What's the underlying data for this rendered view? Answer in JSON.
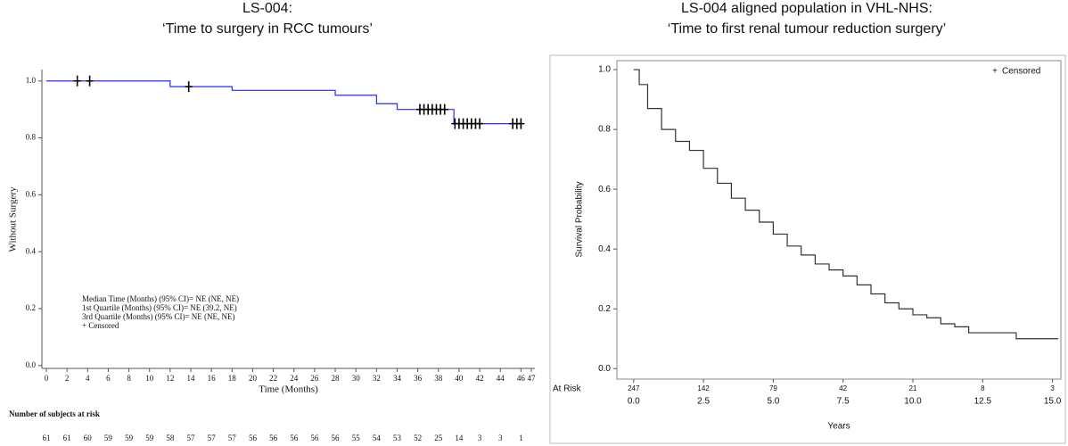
{
  "chart_data": [
    {
      "type": "line",
      "title": "LS-004:",
      "subtitle": "‘Time to surgery in RCC tumours’",
      "x_label": "Time (Months)",
      "y_label": "Without Surgery",
      "xlim": [
        -0.43,
        47.35
      ],
      "ylim": [
        -0.01,
        1.04
      ],
      "xticks": [
        0,
        2,
        4,
        6,
        8,
        10,
        12,
        14,
        16,
        18,
        20,
        22,
        24,
        26,
        28,
        30,
        32,
        34,
        36,
        38,
        40,
        42,
        44,
        46,
        47
      ],
      "yticks": [
        {
          "value": 0,
          "label": "0.0"
        },
        {
          "value": 0.2,
          "label": "0.2"
        },
        {
          "value": 0.4,
          "label": "0.4"
        },
        {
          "value": 0.6,
          "label": "0.6"
        },
        {
          "value": 0.8,
          "label": "0.8"
        },
        {
          "value": 1,
          "label": "1.0"
        }
      ],
      "series": [
        {
          "color": "#2a2aff",
          "x": [
            0,
            12,
            18,
            28,
            32,
            34,
            36,
            39.5,
            46.2
          ],
          "values": [
            1,
            0.98,
            0.967,
            0.95,
            0.92,
            0.9,
            0.9,
            0.85,
            0.85
          ]
        }
      ],
      "censored": {
        "color": "#000000",
        "x": [
          3,
          4.2,
          13.8,
          36.2,
          36.6,
          37,
          37.4,
          37.8,
          38.2,
          38.6,
          39.6,
          40,
          40.4,
          40.8,
          41.2,
          41.6,
          42,
          45.2,
          45.6,
          46
        ],
        "values": [
          1,
          1,
          0.98,
          0.9,
          0.9,
          0.9,
          0.9,
          0.9,
          0.9,
          0.9,
          0.85,
          0.85,
          0.85,
          0.85,
          0.85,
          0.85,
          0.85,
          0.85,
          0.85,
          0.85
        ]
      },
      "annotations": [
        "Median Time (Months) (95% CI)= NE (NE, NE)",
        "1st Quartile (Months) (95% CI)= NE (39.2, NE)",
        "3rd Quartile (Months) (95% CI)= NE (NE, NE)",
        "+ Censored"
      ],
      "at_risk_label": "Number of subjects at risk",
      "at_risk": [
        61,
        61,
        60,
        59,
        59,
        59,
        58,
        57,
        57,
        57,
        56,
        56,
        56,
        56,
        56,
        55,
        54,
        53,
        52,
        25,
        14,
        3,
        3,
        1
      ]
    },
    {
      "type": "line",
      "title": "LS-004 aligned population in VHL-NHS:",
      "subtitle": "‘Time to first renal tumour reduction surgery’",
      "x_label": "Years",
      "y_label": "Survival Probability",
      "xlim": [
        -0.6,
        15.3
      ],
      "ylim": [
        -0.035,
        1.03
      ],
      "xticks": [
        {
          "value": 0,
          "label": "0.0"
        },
        {
          "value": 2.5,
          "label": "2.5"
        },
        {
          "value": 5,
          "label": "5.0"
        },
        {
          "value": 7.5,
          "label": "7.5"
        },
        {
          "value": 10,
          "label": "10.0"
        },
        {
          "value": 12.5,
          "label": "12.5"
        },
        {
          "value": 15,
          "label": "15.0"
        }
      ],
      "yticks": [
        {
          "value": 0,
          "label": "0.0"
        },
        {
          "value": 0.2,
          "label": "0.2"
        },
        {
          "value": 0.4,
          "label": "0.4"
        },
        {
          "value": 0.6,
          "label": "0.6"
        },
        {
          "value": 0.8,
          "label": "0.8"
        },
        {
          "value": 1,
          "label": "1.0"
        }
      ],
      "series": [
        {
          "color": "#333333",
          "x": [
            0,
            0.2,
            0.5,
            1,
            1.5,
            2,
            2.5,
            3,
            3.5,
            4,
            4.5,
            5,
            5.5,
            6,
            6.5,
            7,
            7.5,
            8,
            8.5,
            9,
            9.5,
            10,
            10.5,
            11,
            11.5,
            12,
            13.7,
            15.2
          ],
          "values": [
            1,
            0.95,
            0.87,
            0.8,
            0.76,
            0.73,
            0.67,
            0.62,
            0.57,
            0.53,
            0.49,
            0.45,
            0.41,
            0.38,
            0.35,
            0.33,
            0.31,
            0.28,
            0.25,
            0.22,
            0.2,
            0.18,
            0.17,
            0.15,
            0.14,
            0.12,
            0.1,
            0.1
          ]
        }
      ],
      "legend": {
        "position": "top-right",
        "label": "Censored"
      },
      "at_risk_label": "At Risk",
      "at_risk_x": [
        0,
        2.5,
        5,
        7.5,
        10,
        12.5,
        15
      ],
      "at_risk": [
        247,
        142,
        79,
        42,
        21,
        8,
        3
      ]
    }
  ]
}
